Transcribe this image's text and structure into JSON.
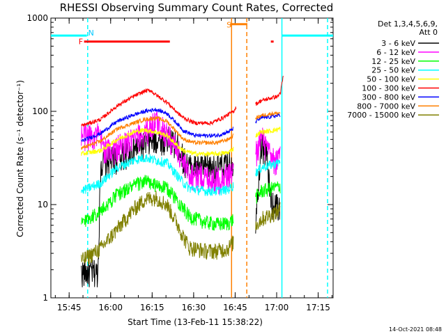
{
  "chart_data": {
    "type": "line",
    "title": "RHESSI Observing Summary Count Rates, Corrected",
    "xlabel": "Start Time (13-Feb-11 15:38:22)",
    "ylabel": "Corrected Count Rate (s⁻¹ detector⁻¹)",
    "x_unit": "minutes after 15:38:22",
    "xlim": [
      0,
      102
    ],
    "ylim": [
      1,
      1000
    ],
    "yscale": "log",
    "x_ticks": [
      {
        "label": "15:45",
        "value": 6.6
      },
      {
        "label": "16:00",
        "value": 21.6
      },
      {
        "label": "16:15",
        "value": 36.6
      },
      {
        "label": "16:30",
        "value": 51.6
      },
      {
        "label": "16:45",
        "value": 66.6
      },
      {
        "label": "17:00",
        "value": 81.6
      },
      {
        "label": "17:15",
        "value": 96.6
      }
    ],
    "y_ticks": [
      {
        "label": "1",
        "value": 1
      },
      {
        "label": "10",
        "value": 10
      },
      {
        "label": "100",
        "value": 100
      },
      {
        "label": "1000",
        "value": 1000
      }
    ],
    "legend_header": [
      "Det 1,3,4,5,6,9,",
      "Att 0"
    ],
    "legend_placement": "right",
    "segments": [
      [
        11,
        65.5
      ],
      [
        74,
        83
      ]
    ],
    "series": [
      {
        "name": "3 - 6 keV",
        "color": "#000000",
        "base_pts": [
          [
            11,
            1.9
          ],
          [
            17,
            1.9
          ],
          [
            18,
            28
          ],
          [
            24,
            32
          ],
          [
            30,
            40
          ],
          [
            34,
            46
          ],
          [
            38,
            50
          ],
          [
            42,
            52
          ],
          [
            46,
            43
          ],
          [
            48,
            31
          ],
          [
            50,
            26
          ],
          [
            60,
            25
          ],
          [
            64,
            27
          ],
          [
            66,
            28
          ]
        ],
        "pts2": [
          [
            74,
            7
          ],
          [
            76,
            45
          ],
          [
            78,
            35
          ],
          [
            79,
            15
          ],
          [
            80,
            10
          ],
          [
            82,
            10
          ],
          [
            83,
            9
          ]
        ],
        "noise": 0.35
      },
      {
        "name": "6 - 12 keV",
        "color": "#ff00ff",
        "base_pts": [
          [
            11,
            55
          ],
          [
            17,
            56
          ],
          [
            20,
            38
          ],
          [
            24,
            41
          ],
          [
            30,
            50
          ],
          [
            34,
            60
          ],
          [
            38,
            80
          ],
          [
            42,
            58
          ],
          [
            46,
            38
          ],
          [
            48,
            27
          ],
          [
            50,
            22
          ],
          [
            60,
            19
          ],
          [
            64,
            21
          ],
          [
            66,
            23
          ]
        ],
        "pts2": [
          [
            74,
            35
          ],
          [
            76,
            55
          ],
          [
            78,
            40
          ],
          [
            80,
            30
          ],
          [
            82,
            30
          ],
          [
            83,
            33
          ]
        ],
        "noise": 0.35
      },
      {
        "name": "12 - 25 keV",
        "color": "#00ff00",
        "base_pts": [
          [
            11,
            6.5
          ],
          [
            18,
            8.5
          ],
          [
            24,
            13
          ],
          [
            30,
            16
          ],
          [
            34,
            18
          ],
          [
            38,
            16
          ],
          [
            42,
            15
          ],
          [
            46,
            11
          ],
          [
            48,
            9
          ],
          [
            50,
            7.5
          ],
          [
            56,
            6.5
          ],
          [
            60,
            6.2
          ],
          [
            64,
            6.3
          ],
          [
            66,
            7
          ]
        ],
        "pts2": [
          [
            74,
            12
          ],
          [
            76,
            14
          ],
          [
            80,
            15
          ],
          [
            82,
            15.5
          ],
          [
            83,
            16
          ]
        ],
        "noise": 0.18
      },
      {
        "name": "25 - 50 keV",
        "color": "#00ffff",
        "base_pts": [
          [
            11,
            14
          ],
          [
            18,
            17
          ],
          [
            24,
            25
          ],
          [
            30,
            30
          ],
          [
            34,
            32
          ],
          [
            38,
            30
          ],
          [
            42,
            28
          ],
          [
            46,
            20
          ],
          [
            48,
            17
          ],
          [
            50,
            15
          ],
          [
            56,
            14
          ],
          [
            60,
            14
          ],
          [
            64,
            14.5
          ],
          [
            66,
            16
          ]
        ],
        "pts2": [
          [
            74,
            22
          ],
          [
            76,
            25
          ],
          [
            80,
            27
          ],
          [
            82,
            28
          ],
          [
            83,
            30
          ]
        ],
        "noise": 0.12
      },
      {
        "name": "50 - 100 keV",
        "color": "#ffff00",
        "base_pts": [
          [
            11,
            35
          ],
          [
            18,
            38
          ],
          [
            24,
            50
          ],
          [
            30,
            60
          ],
          [
            34,
            63
          ],
          [
            38,
            60
          ],
          [
            42,
            55
          ],
          [
            46,
            42
          ],
          [
            48,
            38
          ],
          [
            52,
            35
          ],
          [
            60,
            35
          ],
          [
            64,
            36
          ],
          [
            66,
            40
          ]
        ],
        "pts2": [
          [
            74,
            55
          ],
          [
            76,
            60
          ],
          [
            80,
            62
          ],
          [
            82,
            64
          ],
          [
            83,
            66
          ]
        ],
        "noise": 0.06
      },
      {
        "name": "100 - 300 keV",
        "color": "#ff0000",
        "base_pts": [
          [
            11,
            70
          ],
          [
            18,
            82
          ],
          [
            24,
            115
          ],
          [
            30,
            145
          ],
          [
            34,
            165
          ],
          [
            36,
            168
          ],
          [
            38,
            150
          ],
          [
            42,
            125
          ],
          [
            46,
            95
          ],
          [
            48,
            85
          ],
          [
            52,
            75
          ],
          [
            58,
            75
          ],
          [
            62,
            85
          ],
          [
            66,
            100
          ],
          [
            67,
            112
          ]
        ],
        "pts2": [
          [
            74,
            120
          ],
          [
            76,
            130
          ],
          [
            80,
            140
          ],
          [
            82,
            145
          ],
          [
            83,
            160
          ],
          [
            84,
            240
          ]
        ],
        "noise": 0.05
      },
      {
        "name": "300 - 800 keV",
        "color": "#0000ff",
        "base_pts": [
          [
            11,
            48
          ],
          [
            18,
            58
          ],
          [
            24,
            78
          ],
          [
            30,
            92
          ],
          [
            34,
            100
          ],
          [
            38,
            105
          ],
          [
            42,
            95
          ],
          [
            46,
            72
          ],
          [
            48,
            62
          ],
          [
            52,
            55
          ],
          [
            60,
            55
          ],
          [
            64,
            60
          ],
          [
            66,
            65
          ]
        ],
        "pts2": [
          [
            74,
            78
          ],
          [
            76,
            85
          ],
          [
            80,
            88
          ],
          [
            82,
            90
          ],
          [
            83,
            92
          ]
        ],
        "noise": 0.05
      },
      {
        "name": "800 - 7000 keV",
        "color": "#ff8000",
        "base_pts": [
          [
            11,
            40
          ],
          [
            18,
            48
          ],
          [
            24,
            65
          ],
          [
            30,
            75
          ],
          [
            34,
            82
          ],
          [
            38,
            85
          ],
          [
            42,
            78
          ],
          [
            46,
            58
          ],
          [
            48,
            50
          ],
          [
            52,
            46
          ],
          [
            60,
            46
          ],
          [
            64,
            50
          ],
          [
            66,
            55
          ]
        ],
        "pts2": [
          [
            74,
            85
          ],
          [
            76,
            90
          ],
          [
            80,
            95
          ],
          [
            82,
            95
          ],
          [
            83,
            98
          ]
        ],
        "noise": 0.05
      },
      {
        "name": "7000 - 15000 keV",
        "color": "#808000",
        "base_pts": [
          [
            11,
            2.5
          ],
          [
            18,
            3.4
          ],
          [
            24,
            5.5
          ],
          [
            30,
            9
          ],
          [
            34,
            11.5
          ],
          [
            38,
            12
          ],
          [
            42,
            10
          ],
          [
            46,
            6
          ],
          [
            48,
            4.5
          ],
          [
            50,
            3.5
          ],
          [
            56,
            3.2
          ],
          [
            60,
            3.2
          ],
          [
            64,
            3.4
          ],
          [
            66,
            4
          ]
        ],
        "pts2": [
          [
            74,
            6
          ],
          [
            76,
            7
          ],
          [
            80,
            8
          ],
          [
            82,
            8.5
          ],
          [
            83,
            9
          ]
        ],
        "noise": 0.2
      }
    ],
    "annotations": {
      "labels": [
        {
          "text": "N",
          "x": 13.5,
          "y": 700,
          "color": "#00c8ff"
        },
        {
          "text": "F",
          "x": 10,
          "y": 560,
          "color": "#ff0000"
        },
        {
          "text": "S",
          "x": 63.5,
          "y": 850,
          "color": "#ff8000"
        }
      ],
      "hlines": [
        {
          "x1": 0,
          "x2": 13,
          "y": 650,
          "color": "#00ffff"
        },
        {
          "x1": 83.5,
          "x2": 102,
          "y": 650,
          "color": "#00ffff"
        },
        {
          "x1": 12,
          "x2": 43,
          "y": 560,
          "color": "#ff0000"
        },
        {
          "x1": 64.8,
          "x2": 71,
          "y": 860,
          "color": "#ff8000"
        },
        {
          "x1": 79.5,
          "x2": 80.5,
          "y": 560,
          "color": "#ff0000"
        }
      ],
      "vlines": [
        {
          "x": 13.3,
          "color": "#00ffff",
          "dash": true
        },
        {
          "x": 65.3,
          "color": "#ff8000",
          "dash": false
        },
        {
          "x": 70.8,
          "color": "#ff8000",
          "dash": true
        },
        {
          "x": 83.5,
          "color": "#00ffff",
          "dash": false
        },
        {
          "x": 100,
          "color": "#00ffff",
          "dash": true
        }
      ]
    }
  },
  "timestamp": "14-Oct-2021 08:48"
}
